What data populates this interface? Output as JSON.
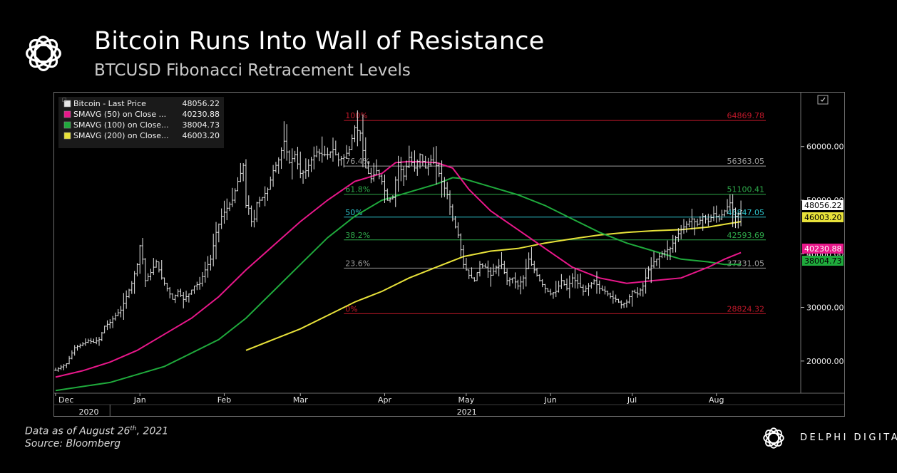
{
  "header": {
    "title": "Bitcoin Runs Into Wall of Resistance",
    "subtitle": "BTCUSD Fibonacci Retracement Levels"
  },
  "footer": {
    "data_prefix": "Data as of August 26",
    "data_sup": "th",
    "data_suffix": ", 2021",
    "source": "Source: Bloomberg",
    "brand": "DELPHI DIGITAL"
  },
  "colors": {
    "price": "#e6e6e6",
    "sma50": "#e8178a",
    "sma100": "#1faa3c",
    "sma200": "#e8e23a",
    "fib_red": "#c0182a",
    "fib_gray": "#9a9a9a",
    "fib_green": "#2ea84a",
    "fib_cyan": "#2ec4cc"
  },
  "chart_data": {
    "type": "line",
    "subtype": "ohlc-with-moving-averages",
    "ylim": [
      14000,
      69000
    ],
    "y_ticks": [
      {
        "value": 20000,
        "label": "20000.00"
      },
      {
        "value": 30000,
        "label": "30000.00"
      },
      {
        "value": 40000,
        "label": "40000.00"
      },
      {
        "value": 50000,
        "label": "50000.00"
      },
      {
        "value": 60000,
        "label": "60000.00"
      }
    ],
    "x_range": [
      0,
      274
    ],
    "x_months": [
      {
        "label": "Dec",
        "day": 0
      },
      {
        "label": "Jan",
        "day": 31
      },
      {
        "label": "Feb",
        "day": 62
      },
      {
        "label": "Mar",
        "day": 90
      },
      {
        "label": "Apr",
        "day": 121
      },
      {
        "label": "May",
        "day": 151
      },
      {
        "label": "Jun",
        "day": 182
      },
      {
        "label": "Jul",
        "day": 212
      },
      {
        "label": "Aug",
        "day": 243
      }
    ],
    "x_years": [
      {
        "label": "2020",
        "day": 8
      },
      {
        "label": "2021",
        "day": 147
      }
    ],
    "year_divider_day": 20,
    "legend": [
      {
        "label": "Bitcoin - Last Price",
        "value": "48056.22",
        "key": "price"
      },
      {
        "label": "SMAVG (50)  on Close ...",
        "value": "40230.88",
        "key": "sma50"
      },
      {
        "label": "SMAVG (100)  on Close...",
        "value": "38004.73",
        "key": "sma100"
      },
      {
        "label": "SMAVG (200)  on Close...",
        "value": "46003.20",
        "key": "sma200"
      }
    ],
    "fib_levels": [
      {
        "pct": "100%",
        "value": 64869.78,
        "label": "64869.78",
        "color": "fib_red"
      },
      {
        "pct": "76.4%",
        "value": 56363.05,
        "label": "56363.05",
        "color": "fib_gray"
      },
      {
        "pct": "61.8%",
        "value": 51100.41,
        "label": "51100.41",
        "color": "fib_green"
      },
      {
        "pct": "50%",
        "value": 46847.05,
        "label": "46847.05",
        "color": "fib_cyan"
      },
      {
        "pct": "38.2%",
        "value": 42593.69,
        "label": "42593.69",
        "color": "fib_green"
      },
      {
        "pct": "23.6%",
        "value": 37331.05,
        "label": "37331.05",
        "color": "fib_gray"
      },
      {
        "pct": "0%",
        "value": 28824.32,
        "label": "28824.32",
        "color": "fib_red"
      }
    ],
    "last_value_tags": [
      {
        "key": "price",
        "value": 48056.22,
        "label": "48056.22"
      },
      {
        "key": "sma200",
        "value": 46003.2,
        "label": "46003.20"
      },
      {
        "key": "sma50",
        "value": 40230.88,
        "label": "40230.88"
      },
      {
        "key": "sma100",
        "value": 38004.73,
        "label": "38004.73"
      }
    ],
    "price_points": [
      [
        0,
        18300
      ],
      [
        4,
        19500
      ],
      [
        7,
        22500
      ],
      [
        10,
        23200
      ],
      [
        12,
        23800
      ],
      [
        14,
        23500
      ],
      [
        16,
        24000
      ],
      [
        18,
        26500
      ],
      [
        20,
        27200
      ],
      [
        22,
        28500
      ],
      [
        24,
        29500
      ],
      [
        26,
        32000
      ],
      [
        28,
        34500
      ],
      [
        30,
        38000
      ],
      [
        31,
        41500
      ],
      [
        32,
        39000
      ],
      [
        33,
        35000
      ],
      [
        35,
        36500
      ],
      [
        37,
        38500
      ],
      [
        39,
        35500
      ],
      [
        41,
        33500
      ],
      [
        43,
        31500
      ],
      [
        45,
        33000
      ],
      [
        47,
        31500
      ],
      [
        49,
        32500
      ],
      [
        51,
        34000
      ],
      [
        53,
        34500
      ],
      [
        55,
        37000
      ],
      [
        57,
        39000
      ],
      [
        59,
        44000
      ],
      [
        61,
        47000
      ],
      [
        63,
        48500
      ],
      [
        65,
        50000
      ],
      [
        67,
        53500
      ],
      [
        69,
        56500
      ],
      [
        70,
        49000
      ],
      [
        71,
        48500
      ],
      [
        72,
        46000
      ],
      [
        73,
        46500
      ],
      [
        74,
        49500
      ],
      [
        76,
        50500
      ],
      [
        78,
        52000
      ],
      [
        80,
        55500
      ],
      [
        82,
        57500
      ],
      [
        84,
        61000
      ],
      [
        86,
        57000
      ],
      [
        88,
        58500
      ],
      [
        90,
        55000
      ],
      [
        92,
        55500
      ],
      [
        94,
        57500
      ],
      [
        96,
        59000
      ],
      [
        98,
        58500
      ],
      [
        100,
        58500
      ],
      [
        102,
        59500
      ],
      [
        104,
        57500
      ],
      [
        106,
        58000
      ],
      [
        108,
        59500
      ],
      [
        110,
        63500
      ],
      [
        112,
        62500
      ],
      [
        114,
        56000
      ],
      [
        116,
        54000
      ],
      [
        118,
        55500
      ],
      [
        120,
        53500
      ],
      [
        122,
        50000
      ],
      [
        124,
        50500
      ],
      [
        126,
        57000
      ],
      [
        128,
        54500
      ],
      [
        130,
        58000
      ],
      [
        132,
        56000
      ],
      [
        134,
        58500
      ],
      [
        136,
        56000
      ],
      [
        138,
        57500
      ],
      [
        140,
        56500
      ],
      [
        142,
        53500
      ],
      [
        144,
        51000
      ],
      [
        146,
        46500
      ],
      [
        148,
        43500
      ],
      [
        150,
        38000
      ],
      [
        152,
        36000
      ],
      [
        154,
        35000
      ],
      [
        156,
        38000
      ],
      [
        158,
        37500
      ],
      [
        160,
        36000
      ],
      [
        162,
        37500
      ],
      [
        164,
        38000
      ],
      [
        166,
        35000
      ],
      [
        168,
        35500
      ],
      [
        170,
        34000
      ],
      [
        172,
        35500
      ],
      [
        174,
        39000
      ],
      [
        176,
        37000
      ],
      [
        178,
        35000
      ],
      [
        180,
        33500
      ],
      [
        182,
        32500
      ],
      [
        184,
        33000
      ],
      [
        186,
        35000
      ],
      [
        188,
        33500
      ],
      [
        190,
        35500
      ],
      [
        192,
        34500
      ],
      [
        194,
        33000
      ],
      [
        196,
        34000
      ],
      [
        198,
        35000
      ],
      [
        200,
        33500
      ],
      [
        202,
        33000
      ],
      [
        204,
        32000
      ],
      [
        206,
        31500
      ],
      [
        208,
        30500
      ],
      [
        210,
        31000
      ],
      [
        212,
        33000
      ],
      [
        214,
        32500
      ],
      [
        216,
        34000
      ],
      [
        218,
        37000
      ],
      [
        220,
        38500
      ],
      [
        222,
        39500
      ],
      [
        224,
        40500
      ],
      [
        226,
        41000
      ],
      [
        228,
        43000
      ],
      [
        230,
        44500
      ],
      [
        232,
        45500
      ],
      [
        234,
        46500
      ],
      [
        236,
        45500
      ],
      [
        238,
        47000
      ],
      [
        240,
        46000
      ],
      [
        242,
        47500
      ],
      [
        244,
        46500
      ],
      [
        246,
        48000
      ],
      [
        248,
        49500
      ],
      [
        250,
        47000
      ],
      [
        252,
        48056
      ]
    ],
    "sma50_points": [
      [
        0,
        17000
      ],
      [
        10,
        18200
      ],
      [
        20,
        19800
      ],
      [
        30,
        22000
      ],
      [
        40,
        25000
      ],
      [
        50,
        28000
      ],
      [
        60,
        32000
      ],
      [
        70,
        37000
      ],
      [
        80,
        41500
      ],
      [
        90,
        46000
      ],
      [
        100,
        50000
      ],
      [
        110,
        53500
      ],
      [
        120,
        55000
      ],
      [
        125,
        57000
      ],
      [
        130,
        57200
      ],
      [
        140,
        57000
      ],
      [
        146,
        56000
      ],
      [
        152,
        52000
      ],
      [
        160,
        48000
      ],
      [
        170,
        44500
      ],
      [
        180,
        41000
      ],
      [
        190,
        37500
      ],
      [
        200,
        35500
      ],
      [
        210,
        34500
      ],
      [
        220,
        35000
      ],
      [
        230,
        35500
      ],
      [
        240,
        37500
      ],
      [
        246,
        39000
      ],
      [
        252,
        40230
      ]
    ],
    "sma100_points": [
      [
        0,
        14500
      ],
      [
        20,
        16000
      ],
      [
        40,
        19000
      ],
      [
        60,
        24000
      ],
      [
        70,
        28000
      ],
      [
        80,
        33000
      ],
      [
        90,
        38000
      ],
      [
        100,
        43000
      ],
      [
        110,
        47000
      ],
      [
        120,
        50000
      ],
      [
        130,
        51500
      ],
      [
        140,
        53000
      ],
      [
        146,
        54200
      ],
      [
        150,
        54000
      ],
      [
        160,
        52500
      ],
      [
        170,
        51000
      ],
      [
        180,
        49000
      ],
      [
        190,
        46500
      ],
      [
        200,
        44000
      ],
      [
        210,
        42000
      ],
      [
        220,
        40500
      ],
      [
        230,
        39000
      ],
      [
        240,
        38500
      ],
      [
        246,
        38000
      ],
      [
        252,
        38004
      ]
    ],
    "sma200_points": [
      [
        70,
        22000
      ],
      [
        80,
        24000
      ],
      [
        90,
        26000
      ],
      [
        100,
        28500
      ],
      [
        110,
        31000
      ],
      [
        120,
        33000
      ],
      [
        130,
        35500
      ],
      [
        140,
        37500
      ],
      [
        150,
        39500
      ],
      [
        160,
        40500
      ],
      [
        170,
        41000
      ],
      [
        180,
        42000
      ],
      [
        190,
        42800
      ],
      [
        200,
        43500
      ],
      [
        210,
        44000
      ],
      [
        220,
        44300
      ],
      [
        230,
        44500
      ],
      [
        240,
        45000
      ],
      [
        246,
        45500
      ],
      [
        252,
        46003
      ]
    ]
  }
}
